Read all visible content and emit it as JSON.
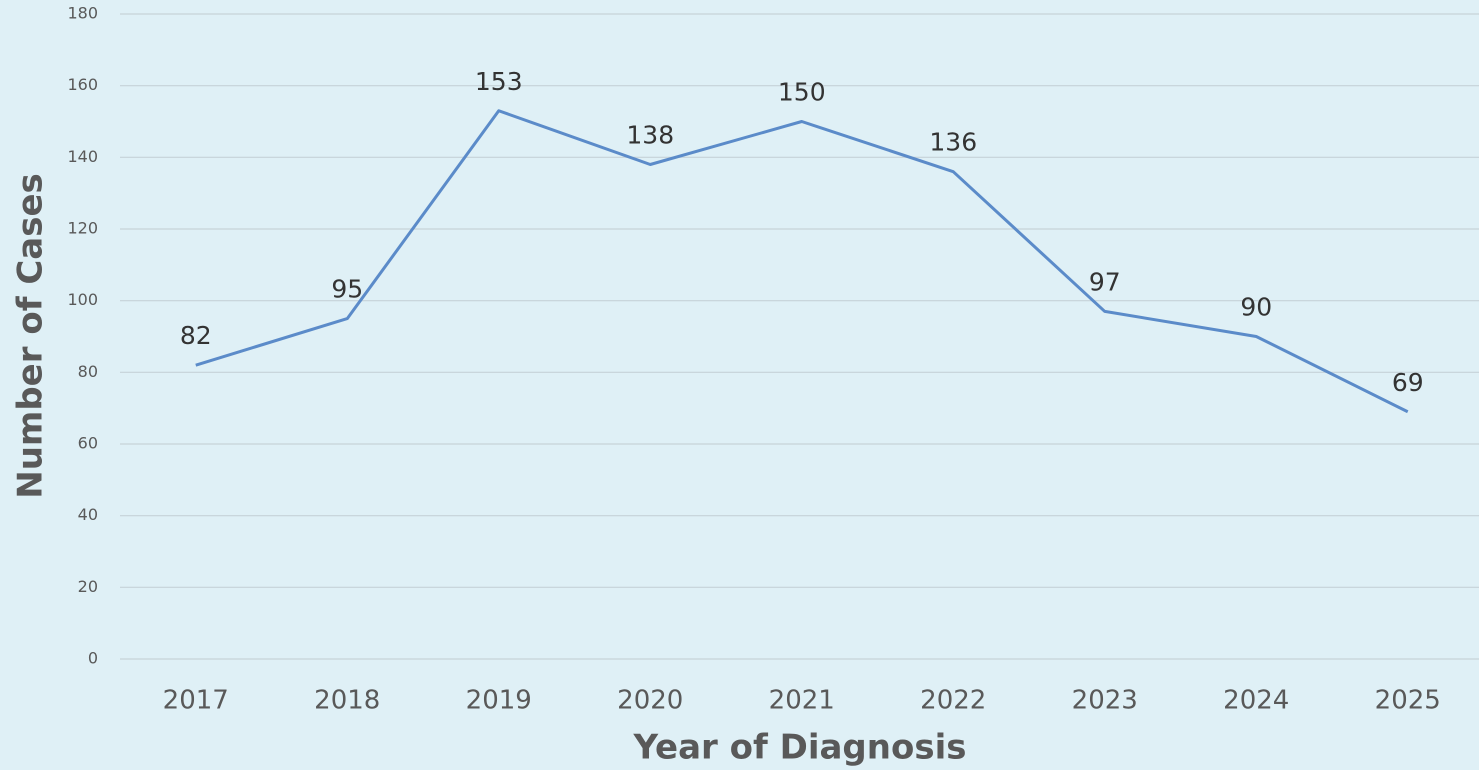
{
  "chart_data": {
    "type": "line",
    "x_label": "Year of Diagnosis",
    "y_label": "Number of Cases",
    "categories": [
      "2017",
      "2018",
      "2019",
      "2020",
      "2021",
      "2022",
      "2023",
      "2024",
      "2025"
    ],
    "values": [
      82,
      95,
      153,
      138,
      150,
      136,
      97,
      90,
      69
    ],
    "color": "#5b8bc9",
    "ylim": [
      0,
      180
    ],
    "yticks": [
      0,
      20,
      40,
      60,
      80,
      100,
      120,
      140,
      160,
      180
    ],
    "grid": true
  }
}
